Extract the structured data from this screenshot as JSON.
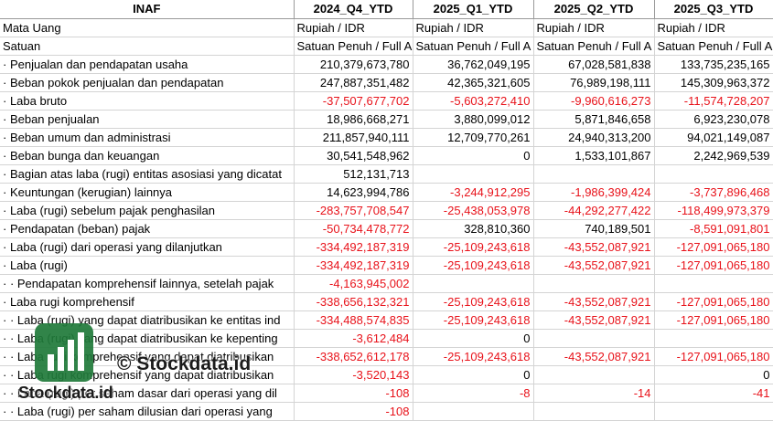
{
  "header": [
    "INAF",
    "2024_Q4_YTD",
    "2025_Q1_YTD",
    "2025_Q2_YTD",
    "2025_Q3_YTD"
  ],
  "rows": [
    {
      "label": "Mata Uang",
      "cells": [
        {
          "v": "Rupiah / IDR",
          "t": "txt"
        },
        {
          "v": "Rupiah / IDR",
          "t": "txt"
        },
        {
          "v": "Rupiah / IDR",
          "t": "txt"
        },
        {
          "v": "Rupiah / IDR",
          "t": "txt"
        }
      ]
    },
    {
      "label": "Satuan",
      "cells": [
        {
          "v": "Satuan Penuh / Full A",
          "t": "txt"
        },
        {
          "v": "Satuan Penuh / Full A",
          "t": "txt"
        },
        {
          "v": "Satuan Penuh / Full A",
          "t": "txt"
        },
        {
          "v": "Satuan Penuh / Full A",
          "t": "txt"
        }
      ]
    },
    {
      "label": "· Penjualan dan pendapatan usaha",
      "cells": [
        {
          "v": "210,379,673,780"
        },
        {
          "v": "36,762,049,195"
        },
        {
          "v": "67,028,581,838"
        },
        {
          "v": "133,735,235,165"
        }
      ]
    },
    {
      "label": "· Beban pokok penjualan dan pendapatan",
      "cells": [
        {
          "v": "247,887,351,482"
        },
        {
          "v": "42,365,321,605"
        },
        {
          "v": "76,989,198,111"
        },
        {
          "v": "145,309,963,372"
        }
      ]
    },
    {
      "label": "· Laba bruto",
      "cells": [
        {
          "v": "-37,507,677,702",
          "t": "neg"
        },
        {
          "v": "-5,603,272,410",
          "t": "neg"
        },
        {
          "v": "-9,960,616,273",
          "t": "neg"
        },
        {
          "v": "-11,574,728,207",
          "t": "neg"
        }
      ]
    },
    {
      "label": "· Beban penjualan",
      "cells": [
        {
          "v": "18,986,668,271"
        },
        {
          "v": "3,880,099,012"
        },
        {
          "v": "5,871,846,658"
        },
        {
          "v": "6,923,230,078"
        }
      ]
    },
    {
      "label": "· Beban umum dan administrasi",
      "cells": [
        {
          "v": "211,857,940,111"
        },
        {
          "v": "12,709,770,261"
        },
        {
          "v": "24,940,313,200"
        },
        {
          "v": "94,021,149,087"
        }
      ]
    },
    {
      "label": "· Beban bunga dan keuangan",
      "cells": [
        {
          "v": "30,541,548,962"
        },
        {
          "v": "0"
        },
        {
          "v": "1,533,101,867"
        },
        {
          "v": "2,242,969,539"
        }
      ]
    },
    {
      "label": "· Bagian atas laba (rugi) entitas asosiasi yang dicatat",
      "cells": [
        {
          "v": "512,131,713"
        },
        {
          "v": ""
        },
        {
          "v": ""
        },
        {
          "v": ""
        }
      ]
    },
    {
      "label": "· Keuntungan (kerugian) lainnya",
      "cells": [
        {
          "v": "14,623,994,786"
        },
        {
          "v": "-3,244,912,295",
          "t": "neg"
        },
        {
          "v": "-1,986,399,424",
          "t": "neg"
        },
        {
          "v": "-3,737,896,468",
          "t": "neg"
        }
      ]
    },
    {
      "label": "· Laba (rugi) sebelum pajak penghasilan",
      "cells": [
        {
          "v": "-283,757,708,547",
          "t": "neg"
        },
        {
          "v": "-25,438,053,978",
          "t": "neg"
        },
        {
          "v": "-44,292,277,422",
          "t": "neg"
        },
        {
          "v": "-118,499,973,379",
          "t": "neg"
        }
      ]
    },
    {
      "label": "· Pendapatan (beban) pajak",
      "cells": [
        {
          "v": "-50,734,478,772",
          "t": "neg"
        },
        {
          "v": "328,810,360"
        },
        {
          "v": "740,189,501"
        },
        {
          "v": "-8,591,091,801",
          "t": "neg"
        }
      ]
    },
    {
      "label": "· Laba (rugi) dari operasi yang dilanjutkan",
      "cells": [
        {
          "v": "-334,492,187,319",
          "t": "neg"
        },
        {
          "v": "-25,109,243,618",
          "t": "neg"
        },
        {
          "v": "-43,552,087,921",
          "t": "neg"
        },
        {
          "v": "-127,091,065,180",
          "t": "neg"
        }
      ]
    },
    {
      "label": "· Laba (rugi)",
      "cells": [
        {
          "v": "-334,492,187,319",
          "t": "neg"
        },
        {
          "v": "-25,109,243,618",
          "t": "neg"
        },
        {
          "v": "-43,552,087,921",
          "t": "neg"
        },
        {
          "v": "-127,091,065,180",
          "t": "neg"
        }
      ]
    },
    {
      "label": "· · Pendapatan komprehensif lainnya, setelah pajak",
      "cells": [
        {
          "v": "-4,163,945,002",
          "t": "neg"
        },
        {
          "v": ""
        },
        {
          "v": ""
        },
        {
          "v": ""
        }
      ]
    },
    {
      "label": "· Laba rugi komprehensif",
      "cells": [
        {
          "v": "-338,656,132,321",
          "t": "neg"
        },
        {
          "v": "-25,109,243,618",
          "t": "neg"
        },
        {
          "v": "-43,552,087,921",
          "t": "neg"
        },
        {
          "v": "-127,091,065,180",
          "t": "neg"
        }
      ]
    },
    {
      "label": "· · Laba (rugi) yang dapat diatribusikan ke entitas ind",
      "cells": [
        {
          "v": "-334,488,574,835",
          "t": "neg"
        },
        {
          "v": "-25,109,243,618",
          "t": "neg"
        },
        {
          "v": "-43,552,087,921",
          "t": "neg"
        },
        {
          "v": "-127,091,065,180",
          "t": "neg"
        }
      ]
    },
    {
      "label": "· · Laba (rugi) yang dapat diatribusikan ke kepenting",
      "cells": [
        {
          "v": "-3,612,484",
          "t": "neg"
        },
        {
          "v": "0"
        },
        {
          "v": ""
        },
        {
          "v": ""
        }
      ]
    },
    {
      "label": "· · Laba rugi komprehensif yang dapat diatribusikan",
      "cells": [
        {
          "v": "-338,652,612,178",
          "t": "neg"
        },
        {
          "v": "-25,109,243,618",
          "t": "neg"
        },
        {
          "v": "-43,552,087,921",
          "t": "neg"
        },
        {
          "v": "-127,091,065,180",
          "t": "neg"
        }
      ]
    },
    {
      "label": "· · Laba rugi komprehensif yang dapat diatribusikan",
      "cells": [
        {
          "v": "-3,520,143",
          "t": "neg"
        },
        {
          "v": "0"
        },
        {
          "v": ""
        },
        {
          "v": "0"
        }
      ]
    },
    {
      "label": "· · Laba (rugi) per saham dasar dari operasi yang dil",
      "cells": [
        {
          "v": "-108",
          "t": "neg"
        },
        {
          "v": "-8",
          "t": "neg"
        },
        {
          "v": "-14",
          "t": "neg"
        },
        {
          "v": "-41",
          "t": "neg"
        }
      ]
    },
    {
      "label": "· · Laba (rugi) per saham dilusian dari operasi yang",
      "cells": [
        {
          "v": "-108",
          "t": "neg"
        },
        {
          "v": ""
        },
        {
          "v": ""
        },
        {
          "v": ""
        }
      ]
    }
  ],
  "watermark": {
    "copyright": "© Stockdata.id",
    "brand": "Stockdata.id",
    "logo_icon": "stockdata-bar-chart-icon",
    "logo_color": "#1f7a3a"
  }
}
